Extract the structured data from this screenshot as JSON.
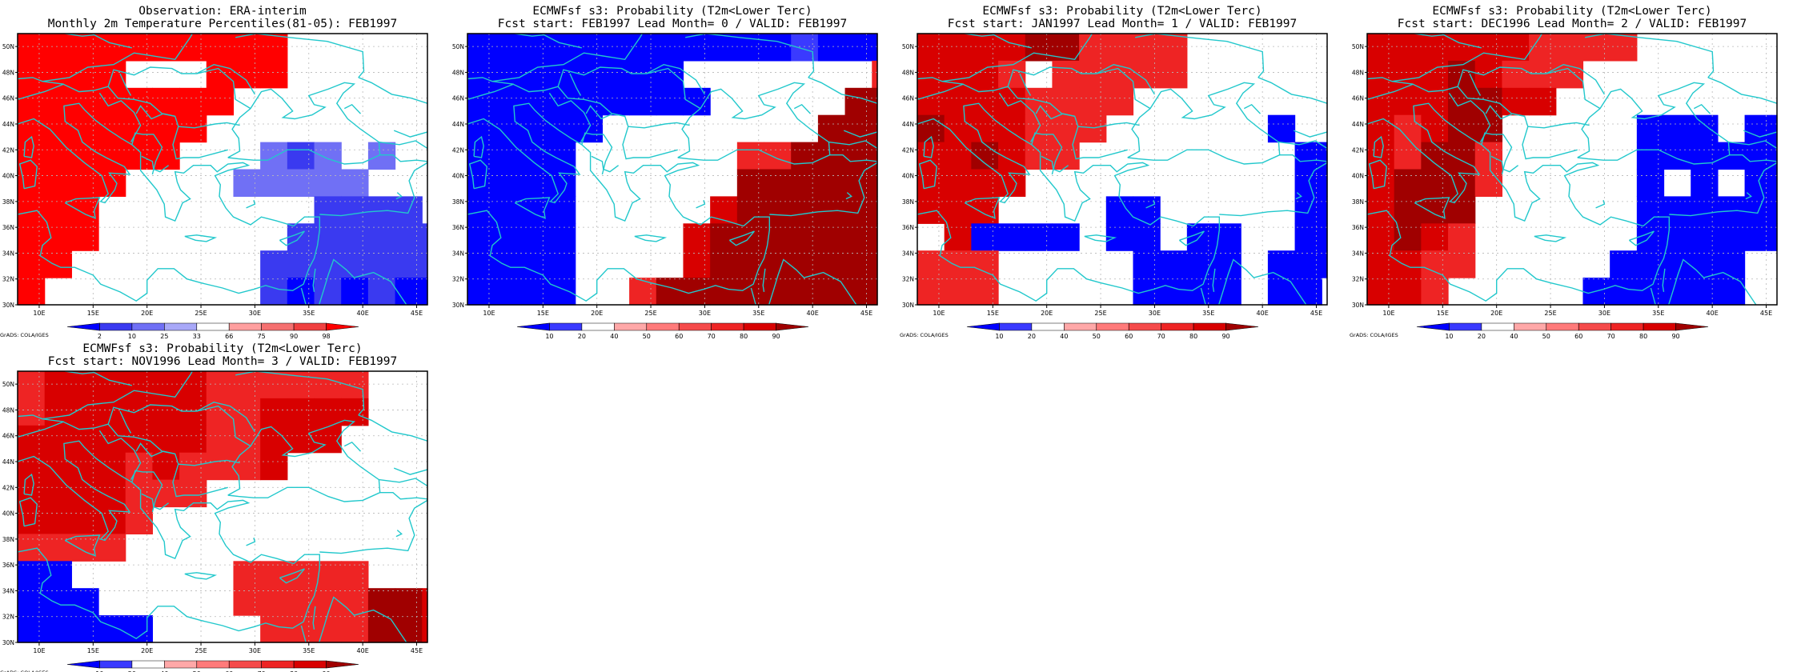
{
  "colors": {
    "coast": "#22c8cc",
    "grid": "#b8b8b8",
    "frame": "#000000",
    "background": "#ffffff"
  },
  "obs_scale": {
    "labels": [
      "2",
      "10",
      "25",
      "33",
      "66",
      "75",
      "90",
      "98"
    ],
    "colors": [
      "#0000ff",
      "#3a3af0",
      "#7070f5",
      "#a8a8f8",
      "#ffffff",
      "#ff9f9f",
      "#f57070",
      "#f04040",
      "#ff0000"
    ]
  },
  "prob_scale": {
    "labels": [
      "10",
      "20",
      "40",
      "50",
      "60",
      "70",
      "80",
      "90"
    ],
    "colors": [
      "#0000ff",
      "#3a3aff",
      "#ffffff",
      "#ffa8a8",
      "#ff7a7a",
      "#f54a4a",
      "#ee2424",
      "#d80000",
      "#a00000"
    ]
  },
  "chart_data": [
    {
      "type": "heatmap",
      "title": "Observation: ERA-interim",
      "subtitle": "Monthly 2m Temperature Percentiles(81-05): FEB1997",
      "xticks": [
        "10E",
        "15E",
        "20E",
        "25E",
        "30E",
        "35E",
        "40E",
        "45E"
      ],
      "yticks": [
        "30N",
        "32N",
        "34N",
        "36N",
        "38N",
        "40N",
        "42N",
        "44N",
        "46N",
        "48N",
        "50N"
      ],
      "xlim": [
        8,
        46
      ],
      "ylim": [
        30,
        51
      ],
      "cell_deg": 2.5,
      "scale": "obs",
      "credit": "GrADS: COLA/IGES",
      "grid": "rows from 50N (top) to 30N; 0=white, positive=warm class, negative=cold class",
      "cells": [
        [
          7,
          7,
          7,
          7,
          6,
          7,
          7,
          7,
          7,
          7,
          0,
          0,
          0,
          0,
          0,
          0
        ],
        [
          7,
          7,
          7,
          6,
          0,
          0,
          0,
          7,
          7,
          7,
          0,
          0,
          0,
          0,
          0,
          0
        ],
        [
          7,
          7,
          7,
          7,
          7,
          7,
          7,
          7,
          0,
          0,
          0,
          0,
          0,
          0,
          0,
          0
        ],
        [
          7,
          7,
          8,
          7,
          7,
          7,
          7,
          0,
          0,
          0,
          0,
          0,
          0,
          0,
          0,
          0
        ],
        [
          8,
          7,
          7,
          7,
          7,
          7,
          0,
          0,
          0,
          -3,
          -2,
          -3,
          0,
          -3,
          0,
          0
        ],
        [
          8,
          7,
          7,
          6,
          0,
          0,
          0,
          0,
          -3,
          -3,
          -3,
          -3,
          -3,
          0,
          0,
          0
        ],
        [
          7,
          7,
          7,
          0,
          0,
          0,
          0,
          0,
          0,
          0,
          0,
          -2,
          -2,
          -2,
          -2,
          0
        ],
        [
          7,
          7,
          6,
          0,
          0,
          0,
          0,
          0,
          0,
          0,
          -2,
          -2,
          -2,
          -2,
          -2,
          -2
        ],
        [
          7,
          7,
          0,
          0,
          0,
          0,
          0,
          0,
          0,
          -2,
          -2,
          -2,
          -2,
          -2,
          -2,
          -2
        ],
        [
          7,
          0,
          0,
          0,
          0,
          0,
          0,
          0,
          0,
          -2,
          -1,
          -2,
          -1,
          -2,
          -1,
          -1
        ]
      ]
    },
    {
      "type": "heatmap",
      "title": "ECMWFsf s3: Probability (T2m<Lower Terc)",
      "subtitle": "Fcst start: FEB1997   Lead Month= 0 / VALID: FEB1997",
      "xticks": [
        "10E",
        "15E",
        "20E",
        "25E",
        "30E",
        "35E",
        "40E",
        "45E"
      ],
      "yticks": [
        "30N",
        "32N",
        "34N",
        "36N",
        "38N",
        "40N",
        "42N",
        "44N",
        "46N",
        "48N",
        "50N"
      ],
      "xlim": [
        8,
        46
      ],
      "ylim": [
        30,
        51
      ],
      "cell_deg": 2.5,
      "scale": "prob",
      "credit": "",
      "cells": [
        [
          -1,
          -1,
          -1,
          -1,
          -1,
          -1,
          -1,
          -1,
          -1,
          -1,
          -1,
          -1,
          -2,
          -1,
          -1,
          -1
        ],
        [
          -1,
          -1,
          -1,
          -1,
          -1,
          -1,
          -1,
          -1,
          0,
          0,
          0,
          0,
          0,
          0,
          0,
          3
        ],
        [
          -1,
          -1,
          -1,
          -1,
          -1,
          -1,
          -1,
          -1,
          -1,
          0,
          0,
          0,
          0,
          0,
          5,
          5
        ],
        [
          -1,
          -1,
          -1,
          -1,
          -1,
          0,
          0,
          0,
          0,
          0,
          0,
          0,
          0,
          5,
          6,
          7
        ],
        [
          -1,
          -1,
          -1,
          -1,
          0,
          0,
          0,
          0,
          0,
          0,
          3,
          3,
          5,
          6,
          6,
          7
        ],
        [
          -1,
          -1,
          -1,
          -1,
          0,
          0,
          0,
          0,
          0,
          0,
          5,
          6,
          6,
          6,
          6,
          6
        ],
        [
          -1,
          -1,
          -1,
          -1,
          0,
          0,
          0,
          0,
          0,
          4,
          6,
          6,
          6,
          7,
          7,
          7
        ],
        [
          -1,
          -1,
          -1,
          -1,
          0,
          0,
          0,
          0,
          4,
          5,
          6,
          6,
          7,
          7,
          7,
          8
        ],
        [
          -1,
          -1,
          -1,
          -1,
          0,
          0,
          0,
          0,
          4,
          5,
          6,
          6,
          7,
          8,
          8,
          8
        ],
        [
          -1,
          -1,
          -1,
          -1,
          0,
          0,
          3,
          5,
          5,
          5,
          5,
          6,
          6,
          7,
          8,
          8
        ]
      ]
    },
    {
      "type": "heatmap",
      "title": "ECMWFsf s3: Probability (T2m<Lower Terc)",
      "subtitle": "Fcst start: JAN1997   Lead Month= 1 / VALID: FEB1997",
      "xticks": [
        "10E",
        "15E",
        "20E",
        "25E",
        "30E",
        "35E",
        "40E",
        "45E"
      ],
      "yticks": [
        "30N",
        "32N",
        "34N",
        "36N",
        "38N",
        "40N",
        "42N",
        "44N",
        "46N",
        "48N",
        "50N"
      ],
      "xlim": [
        8,
        46
      ],
      "ylim": [
        30,
        51
      ],
      "cell_deg": 2.5,
      "scale": "prob",
      "credit": "GrADS: COLA/IGES",
      "cells": [
        [
          4,
          4,
          4,
          4,
          5,
          5,
          3,
          3,
          3,
          3,
          0,
          0,
          0,
          0,
          0,
          0
        ],
        [
          4,
          4,
          4,
          3,
          0,
          3,
          3,
          3,
          3,
          3,
          0,
          0,
          0,
          0,
          0,
          0
        ],
        [
          4,
          4,
          4,
          4,
          3,
          3,
          3,
          3,
          0,
          0,
          0,
          0,
          0,
          0,
          0,
          0
        ],
        [
          5,
          4,
          4,
          4,
          3,
          3,
          3,
          0,
          0,
          0,
          0,
          0,
          0,
          -1,
          0,
          0
        ],
        [
          4,
          4,
          5,
          4,
          3,
          3,
          0,
          0,
          0,
          0,
          0,
          0,
          0,
          0,
          -1,
          -1
        ],
        [
          4,
          4,
          4,
          4,
          0,
          0,
          0,
          0,
          0,
          0,
          0,
          0,
          0,
          0,
          -1,
          -1
        ],
        [
          4,
          4,
          4,
          0,
          0,
          0,
          0,
          -1,
          -1,
          0,
          0,
          0,
          0,
          0,
          -1,
          -1
        ],
        [
          0,
          4,
          -1,
          -1,
          -1,
          -1,
          0,
          -1,
          -1,
          0,
          -1,
          -1,
          0,
          0,
          -1,
          -1
        ],
        [
          3,
          3,
          3,
          0,
          0,
          0,
          0,
          0,
          -1,
          -1,
          -1,
          -1,
          0,
          -1,
          -1,
          -1
        ],
        [
          3,
          3,
          3,
          0,
          0,
          0,
          0,
          0,
          -1,
          -1,
          -1,
          -1,
          0,
          -1,
          -1,
          0
        ]
      ]
    },
    {
      "type": "heatmap",
      "title": "ECMWFsf s3: Probability (T2m<Lower Terc)",
      "subtitle": "Fcst start: DEC1996   Lead Month= 2 / VALID: FEB1997",
      "xticks": [
        "10E",
        "15E",
        "20E",
        "25E",
        "30E",
        "35E",
        "40E",
        "45E"
      ],
      "yticks": [
        "30N",
        "32N",
        "34N",
        "36N",
        "38N",
        "40N",
        "42N",
        "44N",
        "46N",
        "48N",
        "50N"
      ],
      "xlim": [
        8,
        46
      ],
      "ylim": [
        30,
        51
      ],
      "cell_deg": 2.5,
      "scale": "prob",
      "credit": "GrADS: COLA/IGES",
      "cells": [
        [
          4,
          4,
          4,
          4,
          4,
          4,
          3,
          3,
          3,
          3,
          0,
          0,
          0,
          0,
          0,
          0
        ],
        [
          4,
          4,
          4,
          5,
          4,
          3,
          3,
          3,
          0,
          0,
          0,
          0,
          0,
          0,
          0,
          0
        ],
        [
          4,
          4,
          4,
          5,
          5,
          4,
          4,
          0,
          0,
          0,
          0,
          0,
          0,
          0,
          0,
          0
        ],
        [
          4,
          3,
          4,
          5,
          5,
          0,
          0,
          0,
          0,
          0,
          -1,
          -1,
          -1,
          0,
          -1,
          -1
        ],
        [
          4,
          3,
          7,
          5,
          3,
          0,
          0,
          0,
          0,
          0,
          -1,
          -1,
          -1,
          -1,
          -1,
          -1
        ],
        [
          4,
          6,
          6,
          5,
          3,
          0,
          0,
          0,
          0,
          0,
          -1,
          0,
          -1,
          0,
          -1,
          -1
        ],
        [
          4,
          6,
          6,
          5,
          0,
          0,
          0,
          0,
          0,
          0,
          -1,
          -1,
          -1,
          -1,
          -1,
          -1
        ],
        [
          4,
          6,
          4,
          3,
          0,
          0,
          0,
          0,
          0,
          0,
          -1,
          -1,
          -1,
          -1,
          -1,
          -1
        ],
        [
          4,
          4,
          3,
          3,
          0,
          0,
          0,
          0,
          0,
          -1,
          -1,
          -1,
          -1,
          -1,
          0,
          0
        ],
        [
          4,
          4,
          3,
          0,
          0,
          0,
          0,
          0,
          -1,
          -1,
          -1,
          -1,
          -1,
          -1,
          0,
          0
        ]
      ]
    },
    {
      "type": "heatmap",
      "title": "ECMWFsf s3: Probability (T2m<Lower Terc)",
      "subtitle": "Fcst start: NOV1996   Lead Month= 3 / VALID: FEB1997",
      "xticks": [
        "10E",
        "15E",
        "20E",
        "25E",
        "30E",
        "35E",
        "40E",
        "45E"
      ],
      "yticks": [
        "30N",
        "32N",
        "34N",
        "36N",
        "38N",
        "40N",
        "42N",
        "44N",
        "46N",
        "48N",
        "50N"
      ],
      "xlim": [
        8,
        46
      ],
      "ylim": [
        30,
        51
      ],
      "cell_deg": 2.5,
      "scale": "prob",
      "credit": "GrADS: COLA/IGES",
      "cells": [
        [
          3,
          4,
          4,
          4,
          4,
          4,
          4,
          3,
          3,
          3,
          3,
          3,
          3,
          0,
          0,
          0
        ],
        [
          3,
          4,
          4,
          4,
          4,
          4,
          4,
          3,
          3,
          4,
          4,
          4,
          4,
          0,
          0,
          0
        ],
        [
          4,
          4,
          4,
          4,
          4,
          4,
          4,
          3,
          3,
          4,
          4,
          4,
          0,
          0,
          0,
          0
        ],
        [
          4,
          4,
          4,
          4,
          3,
          4,
          3,
          3,
          3,
          4,
          0,
          0,
          0,
          0,
          0,
          0
        ],
        [
          4,
          4,
          4,
          4,
          3,
          3,
          3,
          0,
          0,
          0,
          0,
          0,
          0,
          0,
          0,
          0
        ],
        [
          4,
          4,
          4,
          4,
          3,
          0,
          0,
          0,
          0,
          0,
          0,
          0,
          0,
          0,
          0,
          0
        ],
        [
          3,
          3,
          3,
          3,
          0,
          0,
          0,
          0,
          0,
          0,
          0,
          0,
          0,
          0,
          0,
          0
        ],
        [
          -1,
          -1,
          0,
          0,
          0,
          0,
          0,
          0,
          3,
          3,
          3,
          3,
          3,
          0,
          0,
          0
        ],
        [
          -1,
          -1,
          -1,
          0,
          0,
          0,
          0,
          0,
          3,
          3,
          3,
          3,
          3,
          5,
          5,
          4
        ],
        [
          -1,
          -1,
          -1,
          -1,
          -1,
          0,
          0,
          0,
          0,
          3,
          3,
          3,
          3,
          5,
          5,
          4
        ]
      ]
    }
  ]
}
